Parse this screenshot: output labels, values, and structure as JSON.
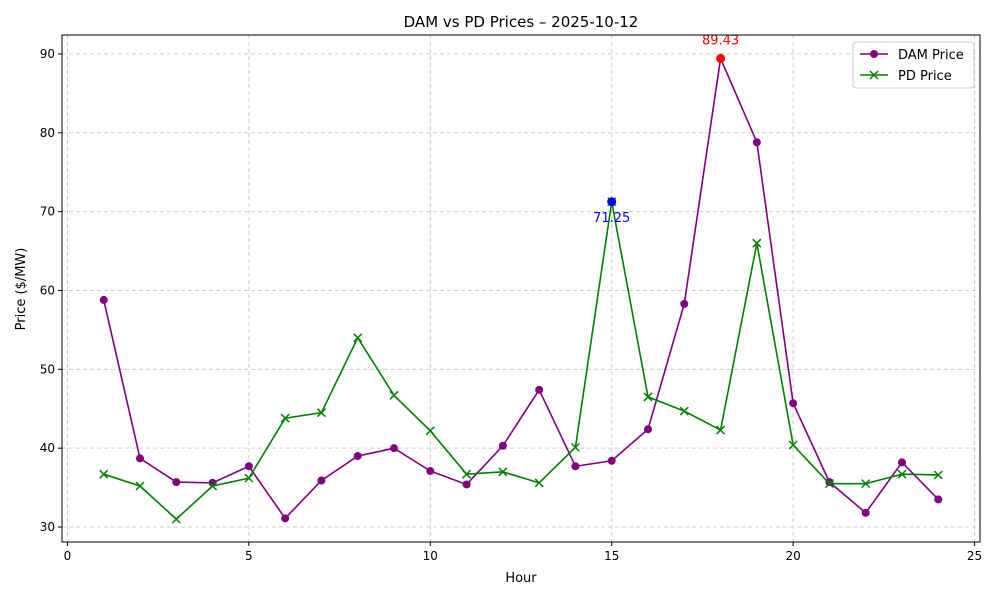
{
  "chart_data": {
    "type": "line",
    "title": "DAM vs PD Prices – 2025-10-12",
    "xlabel": "Hour",
    "ylabel": "Price ($/MW)",
    "xlim": [
      -0.15,
      25.15
    ],
    "ylim": [
      28.1,
      92.4
    ],
    "xticks": [
      0,
      5,
      10,
      15,
      20,
      25
    ],
    "yticks": [
      30,
      40,
      50,
      60,
      70,
      80,
      90
    ],
    "grid": true,
    "legend_position": "top-right",
    "x": [
      1,
      2,
      3,
      4,
      5,
      6,
      7,
      8,
      9,
      10,
      11,
      12,
      13,
      14,
      15,
      16,
      17,
      18,
      19,
      20,
      21,
      22,
      23,
      24
    ],
    "series": [
      {
        "name": "DAM Price",
        "color": "#800080",
        "marker": "circle",
        "values": [
          58.8,
          38.7,
          35.7,
          35.6,
          37.7,
          31.1,
          35.9,
          39.0,
          40.0,
          37.1,
          35.4,
          40.3,
          47.4,
          37.7,
          38.4,
          42.4,
          58.3,
          89.43,
          78.8,
          45.7,
          35.7,
          31.8,
          38.2,
          33.5
        ]
      },
      {
        "name": "PD Price",
        "color": "#008000",
        "marker": "x",
        "values": [
          36.7,
          35.2,
          31.0,
          35.2,
          36.2,
          43.8,
          44.5,
          54.0,
          46.7,
          42.2,
          36.7,
          37.0,
          35.6,
          40.1,
          71.25,
          46.5,
          44.7,
          42.3,
          66.0,
          40.4,
          35.5,
          35.5,
          36.7,
          36.6
        ]
      }
    ],
    "annotations": [
      {
        "label": "89.43",
        "x": 18,
        "y": 89.43,
        "color": "#ff0000",
        "placement": "above"
      },
      {
        "label": "71.25",
        "x": 15,
        "y": 71.25,
        "color": "#0000ff",
        "placement": "below"
      }
    ]
  }
}
